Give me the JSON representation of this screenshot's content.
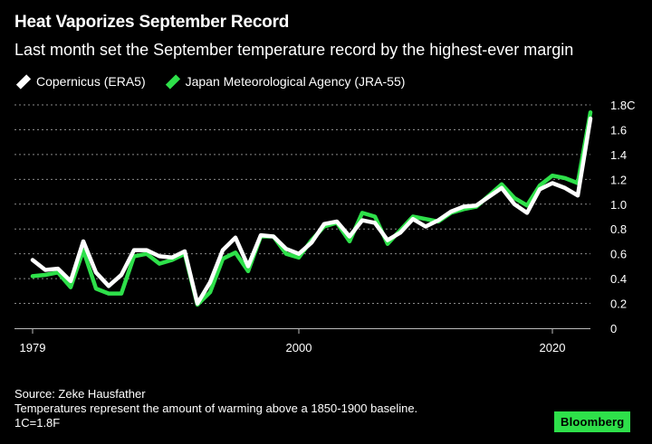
{
  "header": {
    "title": "Heat Vaporizes September Record",
    "subtitle": "Last month set the September temperature record by the highest-ever margin"
  },
  "footer": {
    "source": "Source: Zeke Hausfather",
    "note": "Temperatures represent the amount of warming above a 1850-1900 baseline.",
    "conversion": "1C=1.8F",
    "brand": "Bloomberg"
  },
  "colors": {
    "background": "#000000",
    "copernicus": "#ffffff",
    "jma": "#2ee04a",
    "grid": "#8a8a8a",
    "brand_bg": "#2ee04a"
  },
  "chart_data": {
    "type": "line",
    "x_ticks": [
      1979,
      2000,
      2020
    ],
    "x_tick_labels": [
      "1979",
      "2000",
      "2020"
    ],
    "xlim": [
      1979,
      2023
    ],
    "ylim": [
      0,
      1.8
    ],
    "y_ticks": [
      0,
      0.2,
      0.4,
      0.6,
      0.8,
      1.0,
      1.2,
      1.4,
      1.6,
      1.8
    ],
    "y_tick_labels": [
      "0",
      "0.2",
      "0.4",
      "0.6",
      "0.8",
      "1.0",
      "1.2",
      "1.4",
      "1.6",
      "1.8C"
    ],
    "grid": true,
    "legend_position": "top-left",
    "x": [
      1979,
      1980,
      1981,
      1982,
      1983,
      1984,
      1985,
      1986,
      1987,
      1988,
      1989,
      1990,
      1991,
      1992,
      1993,
      1994,
      1995,
      1996,
      1997,
      1998,
      1999,
      2000,
      2001,
      2002,
      2003,
      2004,
      2005,
      2006,
      2007,
      2008,
      2009,
      2010,
      2011,
      2012,
      2013,
      2014,
      2015,
      2016,
      2017,
      2018,
      2019,
      2020,
      2021,
      2022,
      2023
    ],
    "series": [
      {
        "name": "Copernicus (ERA5)",
        "values": [
          0.55,
          0.47,
          0.48,
          0.38,
          0.7,
          0.45,
          0.34,
          0.43,
          0.63,
          0.63,
          0.58,
          0.57,
          0.62,
          0.2,
          0.37,
          0.63,
          0.73,
          0.5,
          0.75,
          0.74,
          0.64,
          0.6,
          0.69,
          0.84,
          0.86,
          0.74,
          0.87,
          0.85,
          0.71,
          0.77,
          0.88,
          0.82,
          0.87,
          0.94,
          0.98,
          0.99,
          1.06,
          1.13,
          1.0,
          0.93,
          1.12,
          1.17,
          1.13,
          1.07,
          1.69
        ]
      },
      {
        "name": "Japan Meteorological Agency (JRA-55)",
        "values": [
          0.42,
          0.43,
          0.45,
          0.33,
          0.63,
          0.32,
          0.28,
          0.28,
          0.58,
          0.6,
          0.52,
          0.55,
          0.6,
          0.19,
          0.29,
          0.56,
          0.61,
          0.46,
          0.74,
          0.74,
          0.6,
          0.57,
          0.71,
          0.82,
          0.85,
          0.7,
          0.93,
          0.9,
          0.68,
          0.79,
          0.9,
          0.88,
          0.86,
          0.93,
          0.96,
          0.98,
          1.07,
          1.16,
          1.05,
          0.99,
          1.15,
          1.23,
          1.21,
          1.17,
          1.74
        ]
      }
    ]
  }
}
